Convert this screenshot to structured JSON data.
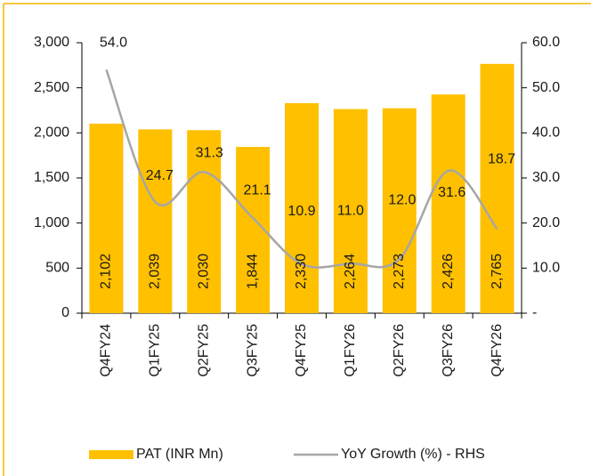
{
  "chart_data": {
    "type": "bar_line",
    "categories": [
      "Q4FY24",
      "Q1FY25",
      "Q2FY25",
      "Q3FY25",
      "Q4FY25",
      "Q1FY26",
      "Q2FY26",
      "Q3FY26",
      "Q4FY26"
    ],
    "series": [
      {
        "name": "PAT (INR Mn)",
        "type": "bar",
        "color": "#ffc000",
        "values": [
          2102,
          2039,
          2030,
          1844,
          2330,
          2264,
          2273,
          2426,
          2765
        ],
        "value_labels": [
          "2,102",
          "2,039",
          "2,030",
          "1,844",
          "2,330",
          "2,264",
          "2,273",
          "2,426",
          "2,765"
        ]
      },
      {
        "name": "YoY Growth (%) - RHS",
        "type": "line",
        "axis": "y2",
        "color": "#a6a6a6",
        "values": [
          54.0,
          24.7,
          31.3,
          21.1,
          10.9,
          11.0,
          12.0,
          31.6,
          18.7
        ],
        "value_labels": [
          "54.0",
          "24.7",
          "31.3",
          "21.1",
          "10.9",
          "11.0",
          "12.0",
          "31.6",
          "18.7"
        ]
      }
    ],
    "ylim": [
      0,
      3000
    ],
    "yticks": [
      0,
      500,
      {
        "value": 1000,
        "label": "1,000"
      },
      {
        "value": 1500,
        "label": "1,500"
      },
      {
        "value": 2000,
        "label": "2,000"
      },
      {
        "value": 2500,
        "label": "2,500"
      },
      {
        "value": 3000,
        "label": "3,000"
      }
    ],
    "y2lim": [
      0,
      60
    ],
    "y2ticks": [
      {
        "value": 0,
        "label": "-"
      },
      {
        "value": 10,
        "label": "10.0"
      },
      {
        "value": 20,
        "label": "20.0"
      },
      {
        "value": 30,
        "label": "30.0"
      },
      {
        "value": 40,
        "label": "40.0"
      },
      {
        "value": 50,
        "label": "50.0"
      },
      {
        "value": 60,
        "label": "60.0"
      }
    ],
    "legend": "bottom"
  }
}
